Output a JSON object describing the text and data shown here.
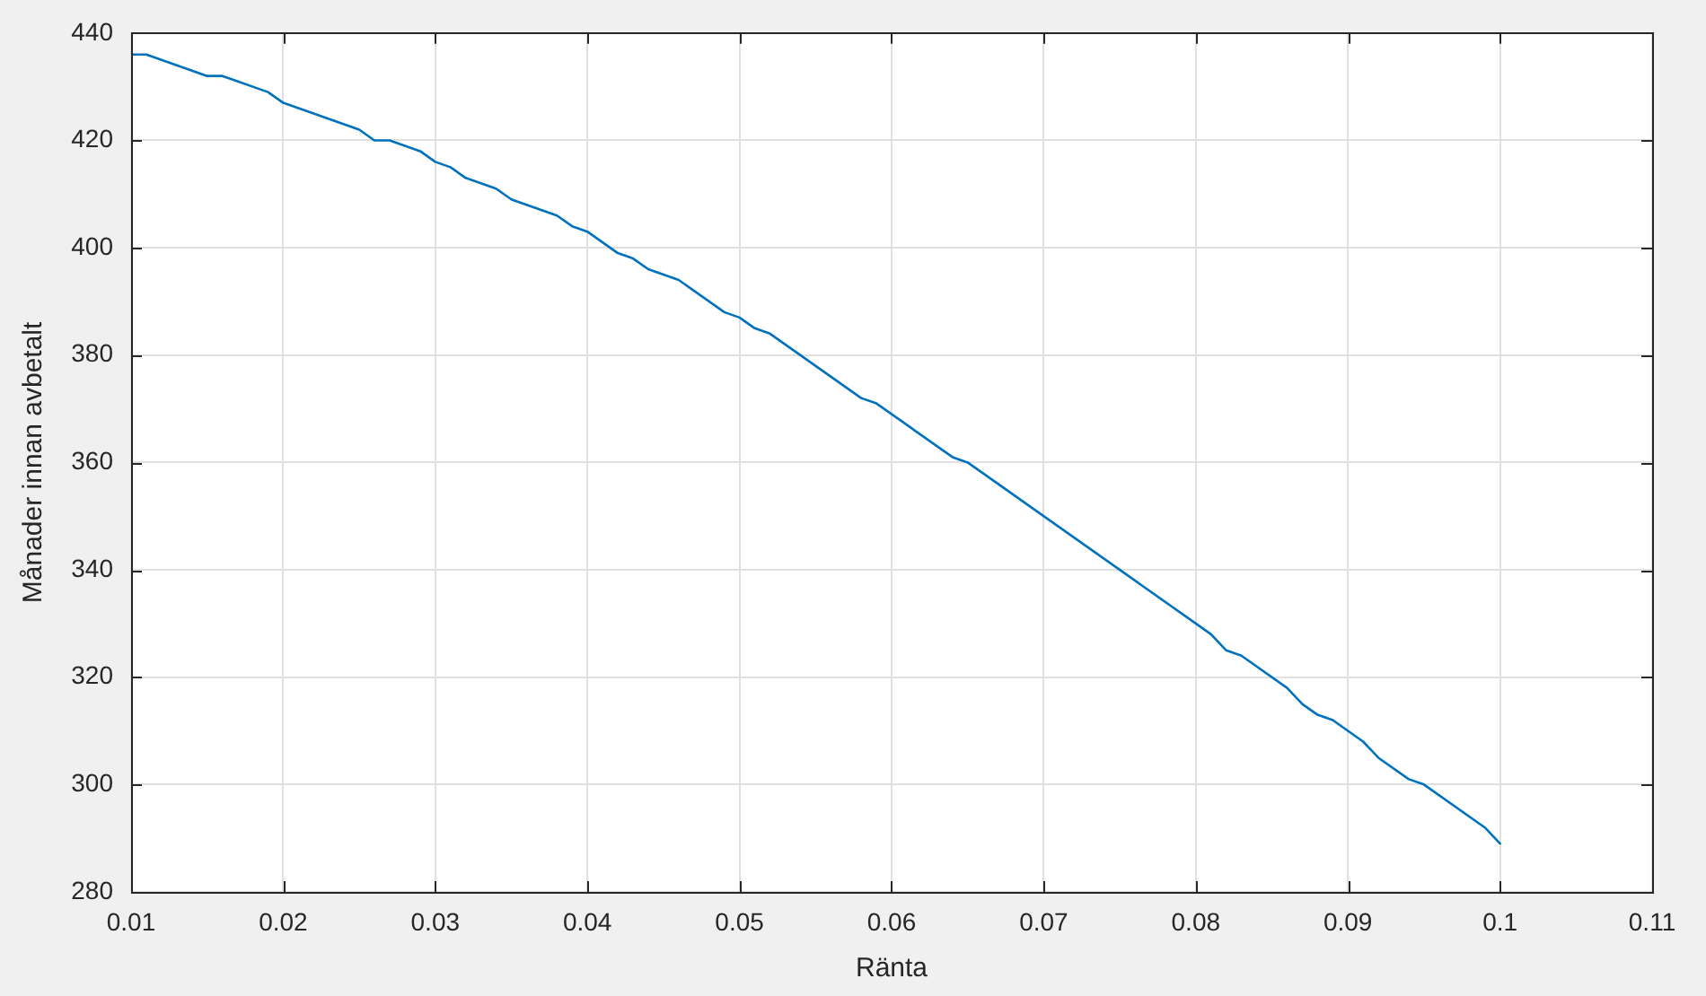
{
  "chart_data": {
    "type": "line",
    "xlabel": "Ränta",
    "ylabel": "Månader innan avbetalt",
    "x": [
      0.01,
      0.011,
      0.015,
      0.016,
      0.019,
      0.02,
      0.025,
      0.026,
      0.027,
      0.029,
      0.03,
      0.031,
      0.032,
      0.034,
      0.035,
      0.038,
      0.039,
      0.04,
      0.042,
      0.043,
      0.044,
      0.046,
      0.049,
      0.05,
      0.051,
      0.052,
      0.058,
      0.059,
      0.064,
      0.065,
      0.08,
      0.081,
      0.082,
      0.083,
      0.086,
      0.087,
      0.088,
      0.089,
      0.09,
      0.091,
      0.092,
      0.094,
      0.095,
      0.099,
      0.1
    ],
    "series": [
      {
        "color": "#0072bd",
        "values": [
          436,
          436,
          432,
          432,
          429,
          427,
          422,
          420,
          420,
          418,
          416,
          415,
          413,
          411,
          409,
          406,
          404,
          403,
          399,
          398,
          396,
          394,
          388,
          387,
          385,
          384,
          372,
          371,
          361,
          360,
          330,
          328,
          325,
          324,
          318,
          315,
          313,
          312,
          310,
          308,
          305,
          301,
          300,
          292,
          289
        ]
      }
    ],
    "xlim": [
      0.01,
      0.11
    ],
    "ylim": [
      280,
      440
    ],
    "xticks": [
      0.01,
      0.02,
      0.03,
      0.04,
      0.05,
      0.06,
      0.07,
      0.08,
      0.09,
      0.1,
      0.11
    ],
    "yticks": [
      280,
      300,
      320,
      340,
      360,
      380,
      400,
      420,
      440
    ],
    "grid": true
  }
}
